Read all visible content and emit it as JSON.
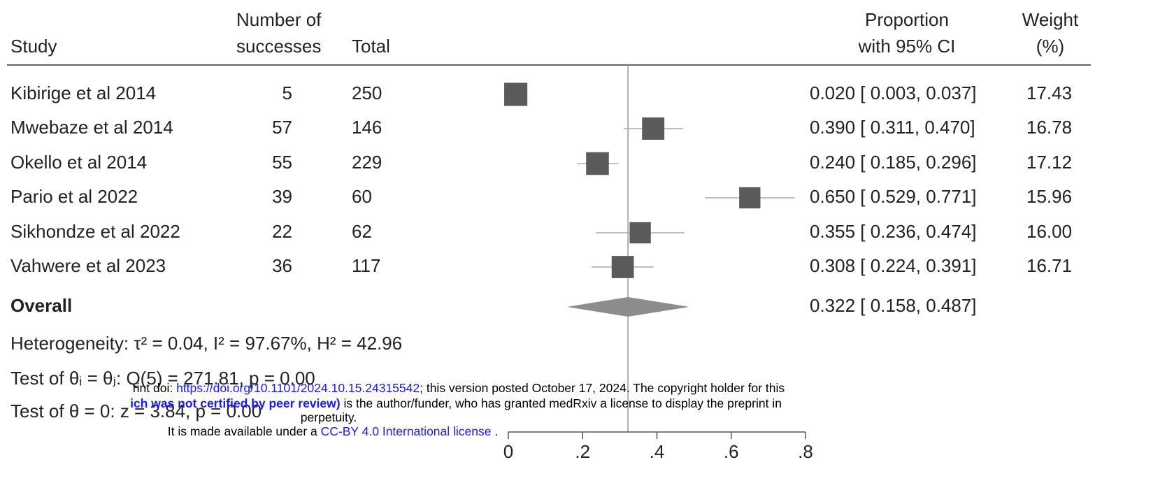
{
  "header": {
    "study": "Study",
    "successes": [
      "Number of",
      "successes"
    ],
    "total": "Total",
    "proportion": [
      "Proportion",
      "with 95% CI"
    ],
    "weight": [
      "Weight",
      "(%)"
    ]
  },
  "chart_data": {
    "type": "forest",
    "studies": [
      "Kibirige et al 2014",
      "Mwebaze et al 2014",
      "Okello et al 2014",
      "Pario et al 2022",
      "Sikhondze et al 2022",
      "Vahwere et al 2023"
    ],
    "successes": [
      5,
      57,
      55,
      39,
      22,
      36
    ],
    "totals": [
      250,
      146,
      229,
      60,
      62,
      117
    ],
    "estimate": [
      0.02,
      0.39,
      0.24,
      0.65,
      0.355,
      0.308
    ],
    "ci_lower": [
      0.003,
      0.311,
      0.185,
      0.529,
      0.236,
      0.224
    ],
    "ci_upper": [
      0.037,
      0.47,
      0.296,
      0.771,
      0.474,
      0.391
    ],
    "ci_labels": [
      "0.020 [ 0.003, 0.037]",
      "0.390 [ 0.311, 0.470]",
      "0.240 [ 0.185, 0.296]",
      "0.650 [ 0.529, 0.771]",
      "0.355 [ 0.236, 0.474]",
      "0.308 [ 0.224, 0.391]"
    ],
    "weights": [
      17.43,
      16.78,
      17.12,
      15.96,
      16,
      16.71
    ],
    "weight_labels": [
      "17.43",
      "16.78",
      "17.12",
      "15.96",
      "16.00",
      "16.71"
    ],
    "overall": {
      "label": "Overall",
      "estimate": 0.322,
      "ci_lower": 0.158,
      "ci_upper": 0.487,
      "ci_label": "0.322 [ 0.158, 0.487]"
    },
    "statistics": [
      "Heterogeneity: τ² = 0.04, I² = 97.67%, H² = 42.96",
      "Test of θᵢ = θⱼ: Q(5) = 271.81, p = 0.00",
      "Test of θ = 0: z = 3.84, p = 0.00"
    ],
    "xlim": [
      0,
      0.8
    ],
    "xticks": [
      0,
      {
        "value": 0.2,
        "label": ".2"
      },
      {
        "value": 0.4,
        "label": ".4"
      },
      {
        "value": 0.6,
        "label": ".6"
      },
      {
        "value": 0.8,
        "label": ".8"
      }
    ],
    "color": "#5a5a5a"
  },
  "watermark": [
    [
      {
        "text": "rint doi: "
      },
      {
        "text": "https://doi.org/10.1101/2024.10.15.24315542",
        "style": "link"
      },
      {
        "text": "; this version posted October 17, 2024. The copyright holder for this"
      }
    ],
    [
      {
        "text": "ich was not certified by peer review)",
        "style": "bold-link"
      },
      {
        "text": " is the author/funder, who has granted medRxiv a license to display the preprint in"
      }
    ],
    [
      {
        "text": "perpetuity."
      }
    ],
    [
      {
        "text": "It is made available under a "
      },
      {
        "text": "CC-BY 4.0 International license",
        "style": "link"
      },
      {
        "text": " ."
      }
    ]
  ]
}
